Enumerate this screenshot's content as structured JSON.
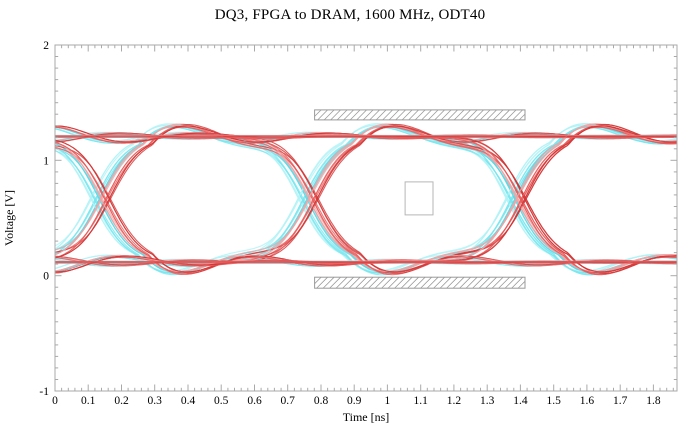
{
  "chart_data": {
    "type": "line",
    "subtype": "eye-diagram",
    "title": "DQ3, FPGA to DRAM, 1600 MHz, ODT40",
    "xlabel": "Time [ns]",
    "ylabel": "Voltage [V]",
    "xlim": [
      0,
      1.871
    ],
    "ylim": [
      -1,
      2
    ],
    "grid": false,
    "x_major_ticks": [
      0,
      0.1,
      0.2,
      0.3,
      0.4,
      0.5,
      0.6,
      0.7,
      0.8,
      0.9,
      1,
      1.1,
      1.2,
      1.3,
      1.4,
      1.5,
      1.6,
      1.7,
      1.8
    ],
    "x_tick_labels": [
      "0",
      "0.1",
      "0.2",
      "0.3",
      "0.4",
      "0.5",
      "0.6",
      "0.7",
      "0.8",
      "0.9",
      "1",
      "1.1",
      "1.2",
      "1.3",
      "1.4",
      "1.5",
      "1.6",
      "1.7",
      "1.8"
    ],
    "x_minor_step": 0.02,
    "y_major_ticks": [
      2,
      1,
      0,
      -1
    ],
    "y_tick_labels": [
      "2",
      "1",
      "0",
      "-1"
    ],
    "y_minor_step": 0.1,
    "signal": {
      "data_rate_mhz": 1600,
      "unit_interval_ns": 0.625,
      "crossing_times_ns": [
        0.15,
        0.775,
        1.4
      ],
      "crossing_voltage": 0.66,
      "high_level": 1.205,
      "low_level": 0.115,
      "overshoot_peak": 1.3,
      "undershoot_min": 0.03,
      "edge_s": 0.095,
      "ring": {
        "amp": 0.13,
        "delay": 0.13,
        "period": 0.44,
        "tau": 0.34
      }
    },
    "masks": [
      {
        "name": "vih-ac-mask",
        "t": [
          0.781,
          1.414
        ],
        "v": [
          1.35,
          1.437
        ]
      },
      {
        "name": "vil-ac-mask",
        "t": [
          0.781,
          1.414
        ],
        "v": [
          -0.108,
          -0.013
        ]
      }
    ],
    "receiver_box": {
      "name": "rx-eye-mask",
      "t": [
        1.053,
        1.137
      ],
      "v": [
        0.527,
        0.813
      ]
    },
    "patterns": [
      {
        "start": 0,
        "edges": [
          -0.475,
          0.15,
          0.775,
          1.4
        ]
      },
      {
        "start": 1,
        "edges": [
          -0.475,
          0.15,
          0.775,
          1.4
        ]
      },
      {
        "start": 0,
        "edges": [
          -0.24,
          0.775,
          1.4
        ]
      },
      {
        "start": 1,
        "edges": [
          -0.24,
          0.775,
          1.4
        ]
      },
      {
        "start": 0,
        "edges": [
          0.15,
          1.4
        ]
      },
      {
        "start": 1,
        "edges": [
          0.15,
          1.4
        ]
      },
      {
        "start": 0,
        "edges": [
          -0.475,
          0.775
        ]
      },
      {
        "start": 1,
        "edges": [
          -0.475,
          0.775
        ]
      },
      {
        "start": 0,
        "edges": [
          0.15
        ]
      },
      {
        "start": 1,
        "edges": [
          0.15
        ]
      },
      {
        "start": 0,
        "edges": [
          -0.24,
          1.4
        ]
      },
      {
        "start": 1,
        "edges": [
          -0.24,
          1.4
        ]
      },
      {
        "start": 1,
        "edges": []
      },
      {
        "start": 0,
        "edges": []
      }
    ],
    "families": [
      {
        "name": "cyan",
        "dt": -0.03,
        "width": 1.2,
        "opacity": 0.8,
        "copies": [
          {
            "dt": -0.013,
            "dv": 0.012,
            "color": "#b2f2f6"
          },
          {
            "dt": 0.0,
            "dv": -0.006,
            "color": "#79e6ef"
          },
          {
            "dt": 0.013,
            "dv": 0.004,
            "color": "#55dbe8"
          }
        ]
      },
      {
        "name": "gray",
        "dt": -0.006,
        "width": 1.0,
        "opacity": 0.9,
        "copies": [
          {
            "dt": 0,
            "dv": 0.003,
            "color": "#8f939b"
          }
        ],
        "patterns": [
          {
            "start": 1,
            "edges": []
          },
          {
            "start": 0,
            "edges": []
          },
          {
            "start": 0,
            "edges": [
              -0.24
            ]
          },
          {
            "start": 1,
            "edges": [
              -0.24
            ]
          }
        ]
      },
      {
        "name": "red",
        "dt": 0.0,
        "width": 1.1,
        "opacity": 0.8,
        "copies": [
          {
            "dt": -0.012,
            "dv": 0.01,
            "color": "#f4a2a2"
          },
          {
            "dt": 0.001,
            "dv": -0.005,
            "color": "#e85a5a"
          },
          {
            "dt": 0.013,
            "dv": 0.005,
            "color": "#d23434"
          }
        ]
      }
    ],
    "style": {
      "frame_color": "#a9a9a9",
      "mask_color": "#9a9a9a",
      "box_color": "#b6b6b6",
      "text_color": "#000000",
      "background": "#ffffff"
    }
  }
}
